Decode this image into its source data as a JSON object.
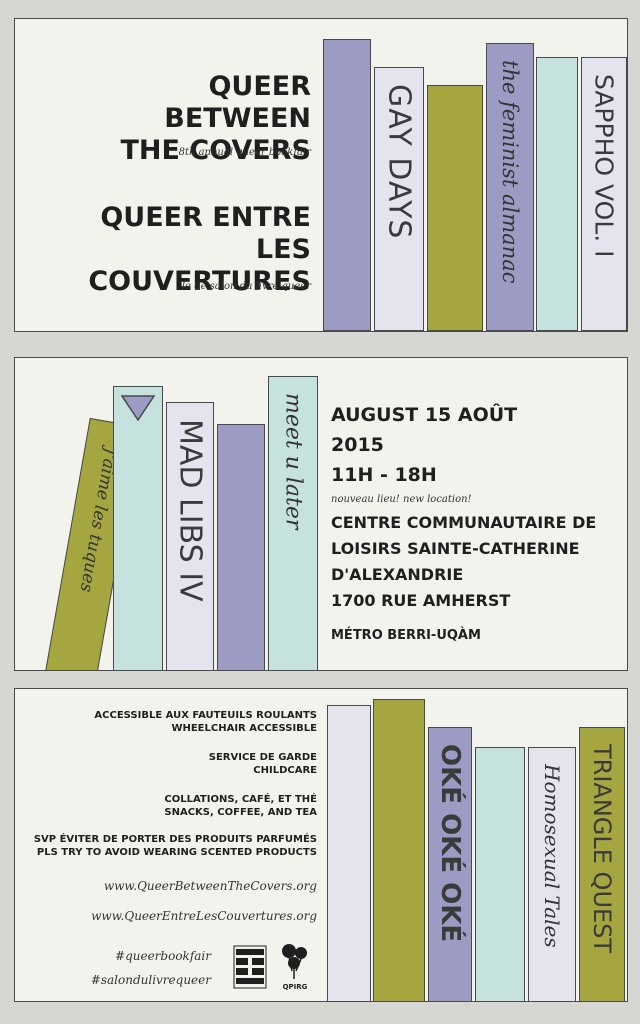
{
  "colors": {
    "background": "#d6d6d3",
    "panel": "#f3f3ee",
    "lavender": "#9b9bc4",
    "pale_lavender": "#e4e4ee",
    "olive": "#a6a640",
    "mint": "#c6e2de",
    "ink": "#1f1f1f"
  },
  "panel1": {
    "title_en_line1": "QUEER BETWEEN",
    "title_en_line2": "THE COVERS",
    "subtitle_en": "8th annual queer bookfair",
    "title_fr_line1": "QUEER ENTRE",
    "title_fr_line2": "LES COUVERTURES",
    "subtitle_fr": "le 8e salon du livre queer",
    "books": [
      "GAY DAYS",
      "the feminist almanac",
      "SAPPHO VOL. I"
    ]
  },
  "panel2": {
    "books": [
      "j'aime les tuques",
      "MAD LIBS IV",
      "meet u later"
    ],
    "date": "AUGUST 15 AOÛT",
    "year": "2015",
    "time": "11H - 18H",
    "new_location": "nouveau lieu! new location!",
    "venue_line1": "CENTRE COMMUNAUTAIRE DE",
    "venue_line2": "LOISIRS SAINTE-CATHERINE",
    "venue_line3": "D'ALEXANDRIE",
    "venue_line4": "1700 RUE AMHERST",
    "metro": "MÉTRO BERRI-UQÀM"
  },
  "panel3": {
    "access_fr": "ACCESSIBLE AUX FAUTEUILS ROULANTS",
    "access_en": "WHEELCHAIR ACCESSIBLE",
    "childcare_fr": "SERVICE DE GARDE",
    "childcare_en": "CHILDCARE",
    "snacks_fr": "COLLATIONS, CAFÉ, ET THÉ",
    "snacks_en": "SNACKS, COFFEE, AND TEA",
    "scent_fr": "SVP ÉVITER DE PORTER DES PRODUITS PARFUMÉS",
    "scent_en": "PLS TRY TO AVOID WEARING SCENTED PRODUCTS",
    "url_en": "www.QueerBetweenTheCovers.org",
    "url_fr": "www.QueerEntreLesCouvertures.org",
    "hashtag_en": "#queerbookfair",
    "hashtag_fr": "#salondulivrequeer",
    "logo_qpirg_text": "QPIRG",
    "books": [
      "OKÉ OKÉ OKÉ",
      "Homosexual Tales",
      "TRIANGLE QUEST"
    ]
  }
}
